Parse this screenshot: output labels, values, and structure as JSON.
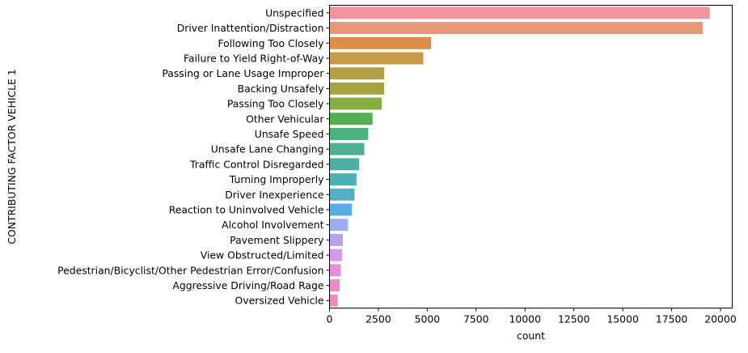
{
  "chart_data": {
    "type": "bar",
    "orientation": "horizontal",
    "xlabel": "count",
    "ylabel": "CONTRIBUTING FACTOR VEHICLE 1",
    "xlim": [
      0,
      20600
    ],
    "xticks": [
      0,
      2500,
      5000,
      7500,
      10000,
      12500,
      15000,
      17500,
      20000
    ],
    "grid": false,
    "categories": [
      "Unspecified",
      "Driver Inattention/Distraction",
      "Following Too Closely",
      "Failure to Yield Right-of-Way",
      "Passing or Lane Usage Improper",
      "Backing Unsafely",
      "Passing Too Closely",
      "Other Vehicular",
      "Unsafe Speed",
      "Unsafe Lane Changing",
      "Traffic Control Disregarded",
      "Turning Improperly",
      "Driver Inexperience",
      "Reaction to Uninvolved Vehicle",
      "Alcohol Involvement",
      "Pavement Slippery",
      "View Obstructed/Limited",
      "Pedestrian/Bicyclist/Other Pedestrian Error/Confusion",
      "Aggressive Driving/Road Rage",
      "Oversized Vehicle"
    ],
    "values": [
      19450,
      19100,
      5200,
      4800,
      2800,
      2800,
      2680,
      2200,
      1980,
      1780,
      1520,
      1380,
      1280,
      1150,
      950,
      680,
      650,
      580,
      520,
      420
    ],
    "colors": [
      "#f1929e",
      "#e7977a",
      "#d8904a",
      "#c89c44",
      "#b5a044",
      "#a3a443",
      "#86ad43",
      "#4eb04e",
      "#4db27e",
      "#4cb193",
      "#4dafa3",
      "#4fb0b3",
      "#52b0c5",
      "#57aee6",
      "#9baef0",
      "#b7a2f0",
      "#d59aef",
      "#e78ddd",
      "#e88bc8",
      "#ee8cb5"
    ]
  }
}
